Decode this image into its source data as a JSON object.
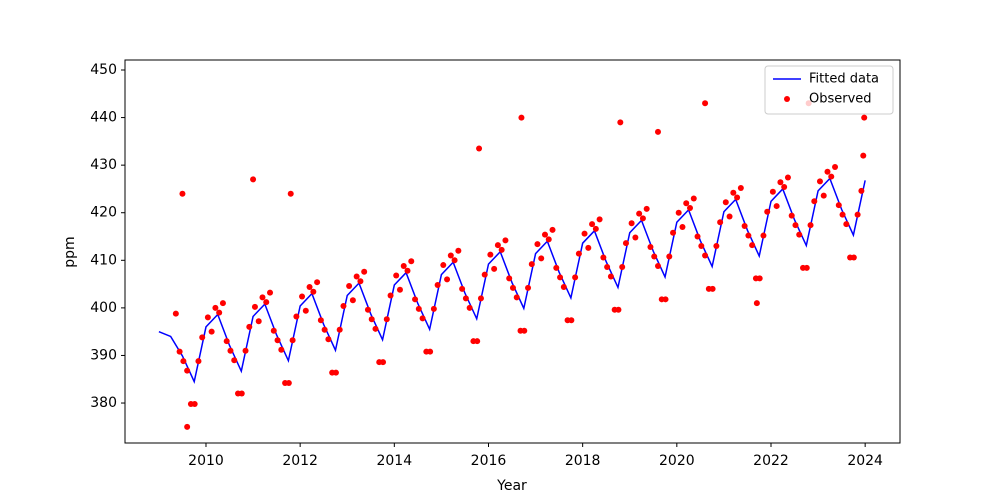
{
  "chart_data": {
    "type": "scatter",
    "xlabel": "Year",
    "ylabel": "ppm",
    "xlim": [
      2008.28,
      2024.74
    ],
    "ylim": [
      371.6,
      452.1
    ],
    "xticks": [
      2010,
      2012,
      2014,
      2016,
      2018,
      2020,
      2022,
      2024
    ],
    "yticks": [
      380,
      390,
      400,
      410,
      420,
      430,
      440,
      450
    ],
    "legend": "upper right",
    "series": [
      {
        "name": "Fitted data",
        "color": "#0000ff",
        "kind": "line",
        "x": [
          2009,
          2009.25,
          2009.5,
          2009.75,
          2010,
          2010.25,
          2010.5,
          2010.75,
          2011,
          2011.25,
          2011.5,
          2011.75,
          2012,
          2012.25,
          2012.5,
          2012.75,
          2013,
          2013.25,
          2013.5,
          2013.75,
          2014,
          2014.25,
          2014.5,
          2014.75,
          2015,
          2015.25,
          2015.5,
          2015.75,
          2016,
          2016.25,
          2016.5,
          2016.75,
          2017,
          2017.25,
          2017.5,
          2017.75,
          2018,
          2018.25,
          2018.5,
          2018.75,
          2019,
          2019.25,
          2019.5,
          2019.75,
          2020,
          2020.25,
          2020.5,
          2020.75,
          2021,
          2021.25,
          2021.5,
          2021.75,
          2022,
          2022.25,
          2022.5,
          2022.75,
          2023,
          2023.25,
          2023.5,
          2023.75,
          2024
        ],
        "values": [
          395,
          394,
          389.9,
          384.5,
          396,
          398.6,
          392.1,
          386.7,
          398.2,
          400.8,
          394.3,
          388.9,
          400.4,
          403,
          396.5,
          391.1,
          402.6,
          405.2,
          398.7,
          393.3,
          404.8,
          407.4,
          400.9,
          395.5,
          407,
          409.6,
          403.1,
          397.7,
          409.2,
          411.8,
          405.3,
          399.9,
          411.4,
          414,
          407.5,
          402.1,
          413.6,
          416.2,
          409.7,
          404.3,
          415.8,
          418.4,
          411.9,
          406.5,
          418,
          420.6,
          414.1,
          408.7,
          420.2,
          422.8,
          416.3,
          410.9,
          422.4,
          425,
          418.5,
          413.1,
          424.6,
          427.2,
          420.7,
          415.3,
          426.8
        ]
      },
      {
        "name": "Observed",
        "color": "#ff0000",
        "kind": "scatter",
        "x": [
          2009.36,
          2009.44,
          2009.52,
          2009.6,
          2009.68,
          2009.76,
          2009.84,
          2009.92,
          2010.04,
          2010.12,
          2010.2,
          2010.28,
          2010.36,
          2010.44,
          2010.52,
          2010.6,
          2010.68,
          2010.76,
          2010.84,
          2010.92,
          2011.04,
          2011.12,
          2011.2,
          2011.28,
          2011.36,
          2011.44,
          2011.52,
          2011.6,
          2011.68,
          2011.76,
          2011.84,
          2011.92,
          2012.04,
          2012.12,
          2012.2,
          2012.28,
          2012.36,
          2012.44,
          2012.52,
          2012.6,
          2012.68,
          2012.76,
          2012.84,
          2012.92,
          2013.04,
          2013.12,
          2013.2,
          2013.28,
          2013.36,
          2013.44,
          2013.52,
          2013.6,
          2013.68,
          2013.76,
          2013.84,
          2013.92,
          2014.04,
          2014.12,
          2014.2,
          2014.28,
          2014.36,
          2014.44,
          2014.52,
          2014.6,
          2014.68,
          2014.76,
          2014.84,
          2014.92,
          2015.04,
          2015.12,
          2015.2,
          2015.28,
          2015.36,
          2015.44,
          2015.52,
          2015.6,
          2015.68,
          2015.76,
          2015.84,
          2015.92,
          2016.04,
          2016.12,
          2016.2,
          2016.28,
          2016.36,
          2016.44,
          2016.52,
          2016.6,
          2016.68,
          2016.76,
          2016.84,
          2016.92,
          2017.04,
          2017.12,
          2017.2,
          2017.28,
          2017.36,
          2017.44,
          2017.52,
          2017.6,
          2017.68,
          2017.76,
          2017.84,
          2017.92,
          2018.04,
          2018.12,
          2018.2,
          2018.28,
          2018.36,
          2018.44,
          2018.52,
          2018.6,
          2018.68,
          2018.76,
          2018.84,
          2018.92,
          2019.04,
          2019.12,
          2019.2,
          2019.28,
          2019.36,
          2019.44,
          2019.52,
          2019.6,
          2019.68,
          2019.76,
          2019.84,
          2019.92,
          2020.04,
          2020.12,
          2020.2,
          2020.28,
          2020.36,
          2020.44,
          2020.52,
          2020.6,
          2020.68,
          2020.76,
          2020.84,
          2020.92,
          2021.04,
          2021.12,
          2021.2,
          2021.28,
          2021.36,
          2021.44,
          2021.52,
          2021.6,
          2021.68,
          2021.76,
          2021.84,
          2021.92,
          2022.04,
          2022.12,
          2022.2,
          2022.28,
          2022.36,
          2022.44,
          2022.52,
          2022.6,
          2022.68,
          2022.76,
          2022.84,
          2022.92,
          2023.04,
          2023.12,
          2023.2,
          2023.28,
          2023.36,
          2023.44,
          2023.52,
          2023.6,
          2023.68,
          2023.76,
          2023.84,
          2023.92,
          2023.96,
          2023.98,
          2009.5,
          2011,
          2011.8,
          2015.8,
          2016.7,
          2018.8,
          2019.6,
          2020.6,
          2022.8,
          2021.7,
          2009.6
        ],
        "values": [
          398.8,
          390.8,
          388.8,
          386.8,
          379.8,
          379.8,
          388.8,
          393.8,
          398,
          395,
          400,
          399,
          401,
          393,
          391,
          389,
          382,
          382,
          391,
          396,
          400.2,
          397.2,
          402.2,
          401.2,
          403.2,
          395.2,
          393.2,
          391.2,
          384.2,
          384.2,
          393.2,
          398.2,
          402.4,
          399.4,
          404.4,
          403.4,
          405.4,
          397.4,
          395.4,
          393.4,
          386.4,
          386.4,
          395.4,
          400.4,
          404.6,
          401.6,
          406.6,
          405.6,
          407.6,
          399.6,
          397.6,
          395.6,
          388.6,
          388.6,
          397.6,
          402.6,
          406.8,
          403.8,
          408.8,
          407.8,
          409.8,
          401.8,
          399.8,
          397.8,
          390.8,
          390.8,
          399.8,
          404.8,
          409,
          406,
          411,
          410,
          412,
          404,
          402,
          400,
          393,
          393,
          402,
          407,
          411.2,
          408.2,
          413.2,
          412.2,
          414.2,
          406.2,
          404.2,
          402.2,
          395.2,
          395.2,
          404.2,
          409.2,
          413.4,
          410.4,
          415.4,
          414.4,
          416.4,
          408.4,
          406.4,
          404.4,
          397.4,
          397.4,
          406.4,
          411.4,
          415.6,
          412.6,
          417.6,
          416.6,
          418.6,
          410.6,
          408.6,
          406.6,
          399.6,
          399.6,
          408.6,
          413.6,
          417.8,
          414.8,
          419.8,
          418.8,
          420.8,
          412.8,
          410.8,
          408.8,
          401.8,
          401.8,
          410.8,
          415.8,
          420,
          417,
          422,
          421,
          423,
          415,
          413,
          411,
          404,
          404,
          413,
          418,
          422.2,
          419.2,
          424.2,
          423.2,
          425.2,
          417.2,
          415.2,
          413.2,
          406.2,
          406.2,
          415.2,
          420.2,
          424.4,
          421.4,
          426.4,
          425.4,
          427.4,
          419.4,
          417.4,
          415.4,
          408.4,
          408.4,
          417.4,
          422.4,
          426.6,
          423.6,
          428.6,
          427.6,
          429.6,
          421.6,
          419.6,
          417.6,
          410.6,
          410.6,
          419.6,
          424.6,
          432,
          440,
          424,
          427,
          424,
          433.5,
          440,
          439,
          437,
          443,
          443,
          401,
          375
        ]
      }
    ]
  }
}
